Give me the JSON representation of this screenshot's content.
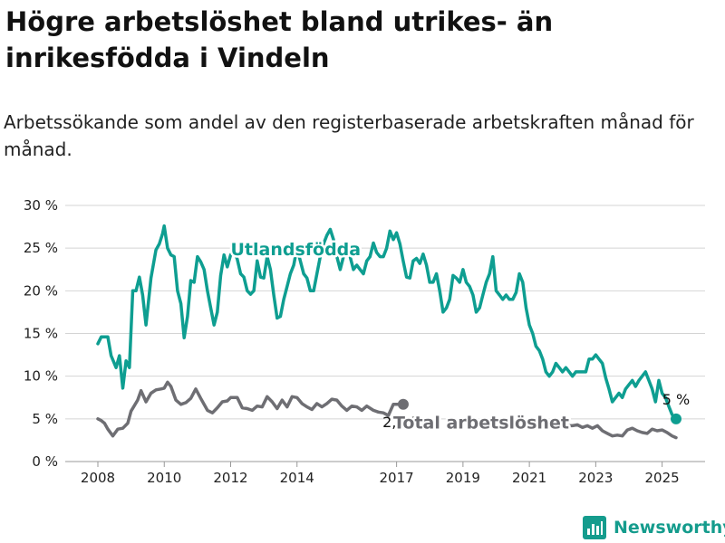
{
  "header": {
    "title": "Högre arbetslöshet bland utrikes- än inrikesfödda i Vindeln",
    "subtitle": "Arbetssökande som andel av den registerbaserade arbetskraften månad för månad."
  },
  "branding": {
    "name": "Newsworthy",
    "icon": "bar-chart-logo-icon",
    "color": "#159c8d"
  },
  "chart_data": {
    "type": "line",
    "title": "Högre arbetslöshet bland utrikes- än inrikesfödda i Vindeln",
    "subtitle": "Arbetssökande som andel av den registerbaserade arbetskraften månad för månad.",
    "xlim": [
      2008.0,
      2025.42
    ],
    "ylim": [
      0,
      30
    ],
    "y_ticks": [
      0,
      5,
      10,
      15,
      20,
      25,
      30
    ],
    "y_tick_labels": [
      "0 %",
      "5 %",
      "10 %",
      "15 %",
      "20 %",
      "25 %",
      "30 %"
    ],
    "x_ticks": [
      2008,
      2010,
      2012,
      2014,
      2017,
      2019,
      2021,
      2023,
      2025
    ],
    "x_tick_labels": [
      "2008",
      "2010",
      "2012",
      "2014",
      "2017",
      "2019",
      "2021",
      "2023",
      "2025"
    ],
    "grid": true,
    "legend": "inline labels",
    "series": [
      {
        "name": "Utlandsfödda",
        "color": "#0e9e91",
        "end_label": "5 %",
        "points": [
          [
            2008.0,
            13.8
          ],
          [
            2008.1,
            14.6
          ],
          [
            2008.3,
            14.6
          ],
          [
            2008.4,
            12.4
          ],
          [
            2008.55,
            11.0
          ],
          [
            2008.65,
            12.4
          ],
          [
            2008.75,
            8.6
          ],
          [
            2008.85,
            11.8
          ],
          [
            2008.95,
            11.0
          ],
          [
            2009.05,
            20.0
          ],
          [
            2009.15,
            20.0
          ],
          [
            2009.25,
            21.6
          ],
          [
            2009.35,
            19.5
          ],
          [
            2009.45,
            16.0
          ],
          [
            2009.6,
            21.5
          ],
          [
            2009.75,
            24.8
          ],
          [
            2009.85,
            25.5
          ],
          [
            2009.95,
            26.7
          ],
          [
            2010.0,
            27.6
          ],
          [
            2010.1,
            25.0
          ],
          [
            2010.2,
            24.2
          ],
          [
            2010.3,
            24.0
          ],
          [
            2010.4,
            20.0
          ],
          [
            2010.5,
            18.5
          ],
          [
            2010.6,
            14.5
          ],
          [
            2010.7,
            17.0
          ],
          [
            2010.8,
            21.2
          ],
          [
            2010.9,
            21.0
          ],
          [
            2011.0,
            24.0
          ],
          [
            2011.1,
            23.4
          ],
          [
            2011.2,
            22.5
          ],
          [
            2011.3,
            20.0
          ],
          [
            2011.4,
            18.0
          ],
          [
            2011.5,
            16.0
          ],
          [
            2011.6,
            17.5
          ],
          [
            2011.7,
            21.8
          ],
          [
            2011.8,
            24.2
          ],
          [
            2011.9,
            22.8
          ],
          [
            2012.0,
            24.2
          ],
          [
            2012.1,
            24.8
          ],
          [
            2012.2,
            23.7
          ],
          [
            2012.3,
            22.0
          ],
          [
            2012.4,
            21.6
          ],
          [
            2012.5,
            20.0
          ],
          [
            2012.6,
            19.6
          ],
          [
            2012.7,
            20.0
          ],
          [
            2012.8,
            23.5
          ],
          [
            2012.9,
            21.6
          ],
          [
            2013.0,
            21.5
          ],
          [
            2013.1,
            24.0
          ],
          [
            2013.2,
            22.5
          ],
          [
            2013.3,
            19.5
          ],
          [
            2013.4,
            16.8
          ],
          [
            2013.5,
            17.0
          ],
          [
            2013.6,
            19.0
          ],
          [
            2013.7,
            20.5
          ],
          [
            2013.8,
            22.0
          ],
          [
            2013.9,
            23.0
          ],
          [
            2014.0,
            25.0
          ],
          [
            2014.1,
            23.5
          ],
          [
            2014.2,
            22.0
          ],
          [
            2014.3,
            21.5
          ],
          [
            2014.4,
            20.0
          ],
          [
            2014.5,
            20.0
          ],
          [
            2014.6,
            22.0
          ],
          [
            2014.7,
            24.0
          ],
          [
            2014.8,
            25.5
          ],
          [
            2014.9,
            26.5
          ],
          [
            2015.0,
            27.2
          ],
          [
            2015.1,
            26.0
          ],
          [
            2015.2,
            24.0
          ],
          [
            2015.3,
            22.5
          ],
          [
            2015.4,
            24.0
          ],
          [
            2015.5,
            25.0
          ],
          [
            2015.6,
            24.0
          ],
          [
            2015.7,
            22.5
          ],
          [
            2015.8,
            23.0
          ],
          [
            2015.9,
            22.5
          ],
          [
            2016.0,
            22.0
          ],
          [
            2016.1,
            23.5
          ],
          [
            2016.2,
            24.0
          ],
          [
            2016.3,
            25.6
          ],
          [
            2016.4,
            24.5
          ],
          [
            2016.5,
            24.0
          ],
          [
            2016.6,
            24.0
          ],
          [
            2016.7,
            25.0
          ],
          [
            2016.8,
            27.0
          ],
          [
            2016.9,
            26.0
          ],
          [
            2017.0,
            26.8
          ],
          [
            2017.1,
            25.5
          ],
          [
            2017.2,
            23.5
          ],
          [
            2017.3,
            21.6
          ],
          [
            2017.4,
            21.5
          ],
          [
            2017.5,
            23.5
          ],
          [
            2017.6,
            23.8
          ],
          [
            2017.7,
            23.2
          ],
          [
            2017.8,
            24.3
          ],
          [
            2017.9,
            23.0
          ],
          [
            2018.0,
            21.0
          ],
          [
            2018.1,
            21.0
          ],
          [
            2018.2,
            22.0
          ],
          [
            2018.3,
            20.0
          ],
          [
            2018.4,
            17.5
          ],
          [
            2018.5,
            18.0
          ],
          [
            2018.6,
            19.0
          ],
          [
            2018.7,
            21.8
          ],
          [
            2018.8,
            21.5
          ],
          [
            2018.9,
            21.0
          ],
          [
            2019.0,
            22.5
          ],
          [
            2019.1,
            21.0
          ],
          [
            2019.2,
            20.5
          ],
          [
            2019.3,
            19.5
          ],
          [
            2019.4,
            17.5
          ],
          [
            2019.5,
            18.0
          ],
          [
            2019.6,
            19.5
          ],
          [
            2019.7,
            21.0
          ],
          [
            2019.8,
            22.0
          ],
          [
            2019.9,
            24.0
          ],
          [
            2020.0,
            20.0
          ],
          [
            2020.1,
            19.5
          ],
          [
            2020.2,
            19.0
          ],
          [
            2020.3,
            19.5
          ],
          [
            2020.4,
            19.0
          ],
          [
            2020.5,
            19.0
          ],
          [
            2020.6,
            19.8
          ],
          [
            2020.7,
            22.0
          ],
          [
            2020.8,
            21.0
          ],
          [
            2020.9,
            18.0
          ],
          [
            2021.0,
            16.0
          ],
          [
            2021.1,
            15.0
          ],
          [
            2021.2,
            13.5
          ],
          [
            2021.3,
            13.0
          ],
          [
            2021.4,
            12.0
          ],
          [
            2021.5,
            10.5
          ],
          [
            2021.6,
            10.0
          ],
          [
            2021.7,
            10.5
          ],
          [
            2021.8,
            11.5
          ],
          [
            2021.9,
            11.0
          ],
          [
            2022.0,
            10.5
          ],
          [
            2022.1,
            11.0
          ],
          [
            2022.2,
            10.5
          ],
          [
            2022.3,
            10.0
          ],
          [
            2022.4,
            10.5
          ],
          [
            2022.5,
            10.5
          ],
          [
            2022.7,
            10.5
          ],
          [
            2022.8,
            12.0
          ],
          [
            2022.9,
            12.0
          ],
          [
            2023.0,
            12.5
          ],
          [
            2023.1,
            12.0
          ],
          [
            2023.2,
            11.5
          ],
          [
            2023.3,
            9.8
          ],
          [
            2023.4,
            8.5
          ],
          [
            2023.5,
            7.0
          ],
          [
            2023.6,
            7.5
          ],
          [
            2023.7,
            8.0
          ],
          [
            2023.8,
            7.5
          ],
          [
            2023.9,
            8.5
          ],
          [
            2024.0,
            9.0
          ],
          [
            2024.1,
            9.5
          ],
          [
            2024.2,
            8.8
          ],
          [
            2024.3,
            9.5
          ],
          [
            2024.4,
            10.0
          ],
          [
            2024.5,
            10.5
          ],
          [
            2024.6,
            9.5
          ],
          [
            2024.7,
            8.5
          ],
          [
            2024.8,
            7.0
          ],
          [
            2024.9,
            9.5
          ],
          [
            2025.0,
            8.0
          ],
          [
            2025.1,
            7.5
          ],
          [
            2025.2,
            6.5
          ],
          [
            2025.3,
            5.5
          ],
          [
            2025.42,
            5.0
          ]
        ]
      },
      {
        "name": "Total arbetslöshet",
        "color": "#6e6e73",
        "end_label": "2,8 %",
        "points": [
          [
            2008.0,
            5.0
          ],
          [
            2008.1,
            4.8
          ],
          [
            2008.2,
            4.5
          ],
          [
            2008.3,
            3.8
          ],
          [
            2008.45,
            3.0
          ],
          [
            2008.6,
            3.8
          ],
          [
            2008.75,
            3.9
          ],
          [
            2008.9,
            4.5
          ],
          [
            2009.0,
            5.9
          ],
          [
            2009.2,
            7.2
          ],
          [
            2009.3,
            8.3
          ],
          [
            2009.45,
            7.0
          ],
          [
            2009.6,
            8.0
          ],
          [
            2009.75,
            8.4
          ],
          [
            2009.9,
            8.5
          ],
          [
            2010.0,
            8.6
          ],
          [
            2010.1,
            9.3
          ],
          [
            2010.2,
            8.8
          ],
          [
            2010.35,
            7.2
          ],
          [
            2010.5,
            6.7
          ],
          [
            2010.65,
            6.9
          ],
          [
            2010.8,
            7.4
          ],
          [
            2010.95,
            8.5
          ],
          [
            2011.1,
            7.4
          ],
          [
            2011.3,
            6.0
          ],
          [
            2011.45,
            5.7
          ],
          [
            2011.6,
            6.3
          ],
          [
            2011.75,
            7.0
          ],
          [
            2011.9,
            7.1
          ],
          [
            2012.0,
            7.5
          ],
          [
            2012.2,
            7.5
          ],
          [
            2012.35,
            6.3
          ],
          [
            2012.5,
            6.2
          ],
          [
            2012.65,
            6.0
          ],
          [
            2012.8,
            6.5
          ],
          [
            2012.95,
            6.4
          ],
          [
            2013.1,
            7.6
          ],
          [
            2013.25,
            7.0
          ],
          [
            2013.4,
            6.2
          ],
          [
            2013.55,
            7.2
          ],
          [
            2013.7,
            6.4
          ],
          [
            2013.85,
            7.6
          ],
          [
            2014.0,
            7.5
          ],
          [
            2014.15,
            6.8
          ],
          [
            2014.3,
            6.4
          ],
          [
            2014.45,
            6.1
          ],
          [
            2014.6,
            6.8
          ],
          [
            2014.75,
            6.4
          ],
          [
            2014.9,
            6.8
          ],
          [
            2015.05,
            7.3
          ],
          [
            2015.2,
            7.2
          ],
          [
            2015.35,
            6.5
          ],
          [
            2015.5,
            6.0
          ],
          [
            2015.65,
            6.5
          ],
          [
            2015.8,
            6.4
          ],
          [
            2015.95,
            6.0
          ],
          [
            2016.1,
            6.5
          ],
          [
            2016.3,
            6.0
          ],
          [
            2016.45,
            5.8
          ],
          [
            2016.6,
            5.7
          ],
          [
            2016.75,
            5.4
          ],
          [
            2016.9,
            6.7
          ],
          [
            2017.05,
            6.7
          ],
          [
            2017.2,
            6.7
          ]
        ]
      },
      {
        "name": "Total arbetslöshet",
        "color": "#6e6e73",
        "points": [
          [
            2021.95,
            4.3
          ],
          [
            2022.1,
            4.2
          ],
          [
            2022.3,
            4.2
          ],
          [
            2022.45,
            4.3
          ],
          [
            2022.6,
            4.0
          ],
          [
            2022.75,
            4.2
          ],
          [
            2022.9,
            3.9
          ],
          [
            2023.05,
            4.2
          ],
          [
            2023.2,
            3.6
          ],
          [
            2023.35,
            3.3
          ],
          [
            2023.5,
            3.0
          ],
          [
            2023.65,
            3.1
          ],
          [
            2023.8,
            3.0
          ],
          [
            2023.95,
            3.7
          ],
          [
            2024.1,
            3.9
          ],
          [
            2024.25,
            3.6
          ],
          [
            2024.4,
            3.4
          ],
          [
            2024.55,
            3.3
          ],
          [
            2024.7,
            3.8
          ],
          [
            2024.85,
            3.6
          ],
          [
            2025.0,
            3.7
          ],
          [
            2025.15,
            3.4
          ],
          [
            2025.3,
            3.0
          ],
          [
            2025.42,
            2.8
          ]
        ]
      }
    ],
    "annotations": [
      {
        "text": "Utlandsfödda",
        "x": 2012.0,
        "y": 24.8,
        "series": "Utlandsfödda"
      },
      {
        "text": "Total arbetslöshet",
        "x": 2016.9,
        "y": 4.5,
        "series": "Total arbetslöshet"
      }
    ]
  }
}
